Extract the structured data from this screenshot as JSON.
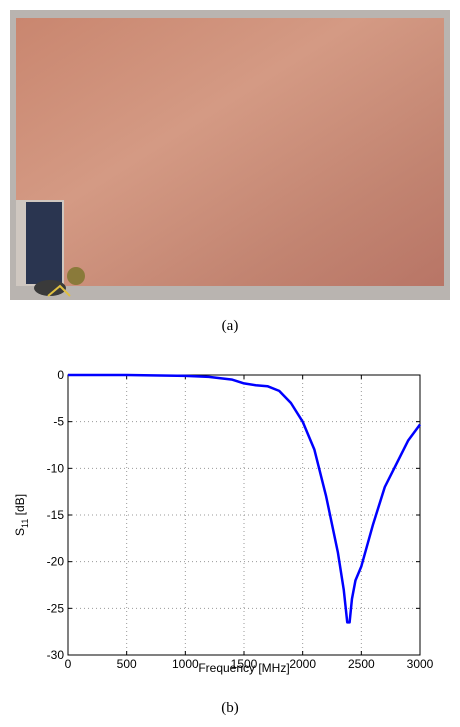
{
  "captions": [
    "(a)",
    "(b)"
  ],
  "chart_data": {
    "type": "line",
    "xlabel": "Frequency [MHz]",
    "ylabel": [
      "S",
      "11",
      " [dB]"
    ],
    "x": [
      0,
      500,
      1000,
      1200,
      1400,
      1500,
      1600,
      1700,
      1800,
      1900,
      2000,
      2100,
      2200,
      2300,
      2350,
      2380,
      2400,
      2420,
      2450,
      2500,
      2600,
      2700,
      2800,
      2900,
      3000
    ],
    "series": [
      {
        "color": "#0000ff",
        "values": [
          0,
          0,
          -0.1,
          -0.2,
          -0.5,
          -0.9,
          -1.1,
          -1.2,
          -1.7,
          -3,
          -5,
          -8,
          -13,
          -19,
          -23,
          -26.5,
          -26.5,
          -24,
          -22,
          -20.5,
          -16,
          -12,
          -9.5,
          -7,
          -5.3
        ]
      }
    ],
    "xlim": [
      0,
      3000
    ],
    "ylim": [
      -30,
      0
    ],
    "xticks": [
      0,
      500,
      1000,
      1500,
      2000,
      2500,
      3000
    ],
    "yticks": [
      -30,
      -25,
      -20,
      -15,
      -10,
      -5,
      0
    ],
    "grid": true
  }
}
